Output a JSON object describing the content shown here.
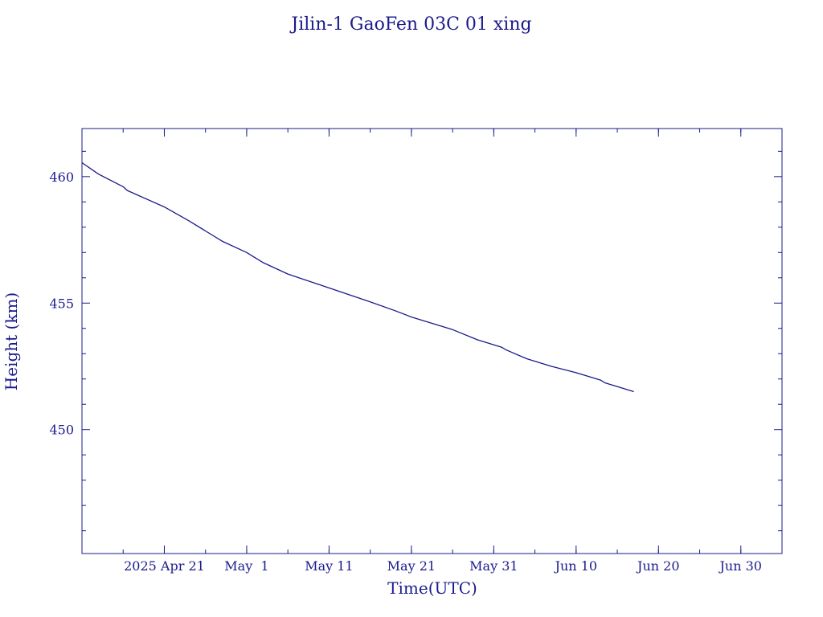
{
  "chart_data": {
    "type": "line",
    "title": "Jilin-1 GaoFen 03C 01 xing",
    "xlabel": "Time(UTC)",
    "ylabel": "Height (km)",
    "x_type": "date",
    "xlim": [
      "2025-04-11",
      "2025-07-05"
    ],
    "ylim": [
      445.1,
      461.9
    ],
    "y_ticks": [
      {
        "value": 450,
        "label": "450"
      },
      {
        "value": 455,
        "label": "455"
      },
      {
        "value": 460,
        "label": "460"
      }
    ],
    "x_ticks": [
      {
        "date": "2025-04-21",
        "label": "2025 Apr 21"
      },
      {
        "date": "2025-05-01",
        "label": "May  1"
      },
      {
        "date": "2025-05-11",
        "label": "May 11"
      },
      {
        "date": "2025-05-21",
        "label": "May 21"
      },
      {
        "date": "2025-05-31",
        "label": "May 31"
      },
      {
        "date": "2025-06-10",
        "label": "Jun 10"
      },
      {
        "date": "2025-06-20",
        "label": "Jun 20"
      },
      {
        "date": "2025-06-30",
        "label": "Jun 30"
      }
    ],
    "series": [
      {
        "color": "#1a1a8c",
        "points": [
          {
            "x": "2025-04-11",
            "y": 460.55
          },
          {
            "x": "2025-04-13",
            "y": 460.1
          },
          {
            "x": "2025-04-16",
            "y": 459.6
          },
          {
            "x": "2025-04-16 12:00",
            "y": 459.45
          },
          {
            "x": "2025-04-21",
            "y": 458.8
          },
          {
            "x": "2025-04-24",
            "y": 458.25
          },
          {
            "x": "2025-04-26",
            "y": 457.85
          },
          {
            "x": "2025-04-28",
            "y": 457.45
          },
          {
            "x": "2025-05-01",
            "y": 457.0
          },
          {
            "x": "2025-05-03",
            "y": 456.6
          },
          {
            "x": "2025-05-06",
            "y": 456.15
          },
          {
            "x": "2025-05-11",
            "y": 455.6
          },
          {
            "x": "2025-05-16",
            "y": 455.05
          },
          {
            "x": "2025-05-19",
            "y": 454.7
          },
          {
            "x": "2025-05-21",
            "y": 454.45
          },
          {
            "x": "2025-05-26",
            "y": 453.95
          },
          {
            "x": "2025-05-29",
            "y": 453.55
          },
          {
            "x": "2025-06-01",
            "y": 453.25
          },
          {
            "x": "2025-06-01 12:00",
            "y": 453.15
          },
          {
            "x": "2025-06-04",
            "y": 452.8
          },
          {
            "x": "2025-06-07",
            "y": 452.5
          },
          {
            "x": "2025-06-10",
            "y": 452.25
          },
          {
            "x": "2025-06-13",
            "y": 451.95
          },
          {
            "x": "2025-06-13 12:00",
            "y": 451.85
          },
          {
            "x": "2025-06-17",
            "y": 451.5
          }
        ]
      }
    ],
    "grid": false
  }
}
